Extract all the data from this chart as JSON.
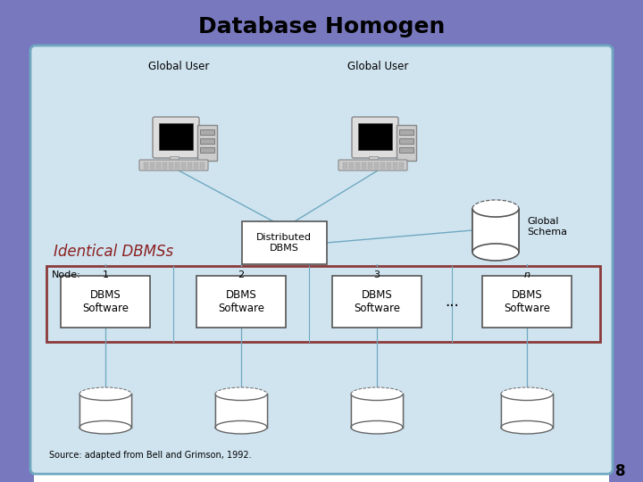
{
  "title": "Database Homogen",
  "title_fontsize": 18,
  "title_color": "#000000",
  "header_bg": "#7878BE",
  "main_bg": "#D0E4F0",
  "main_border": "#6FA8C0",
  "node_box_border": "#8B3A3A",
  "node_box_bg": "#D0E4F0",
  "dbms_box_bg": "#FFFFFF",
  "dbms_box_border": "#555555",
  "dist_dbms_box_bg": "#FFFFFF",
  "dist_dbms_box_border": "#555555",
  "identical_dbms_text": "Identical DBMSs",
  "identical_dbms_color": "#8B2020",
  "source_text": "Source: adapted from Bell and Grimson, 1992.",
  "page_number": "8",
  "global_user1_label": "Global User",
  "global_user2_label": "Global User",
  "distributed_dbms_label": "Distributed\nDBMS",
  "global_schema_label": "Global\nSchema",
  "node_label": "Node:",
  "node_numbers": [
    "1",
    "2",
    "3",
    "n"
  ],
  "dbms_labels": [
    "DBMS\nSoftware",
    "DBMS\nSoftware",
    "DBMS\nSoftware",
    "DBMS\nSoftware"
  ],
  "dots_label": "...",
  "line_color": "#6FA8C0",
  "cyl_edge_color": "#666666",
  "bg_color": "#F0F0F0",
  "fig_w": 7.2,
  "fig_h": 5.4,
  "dpi": 100
}
